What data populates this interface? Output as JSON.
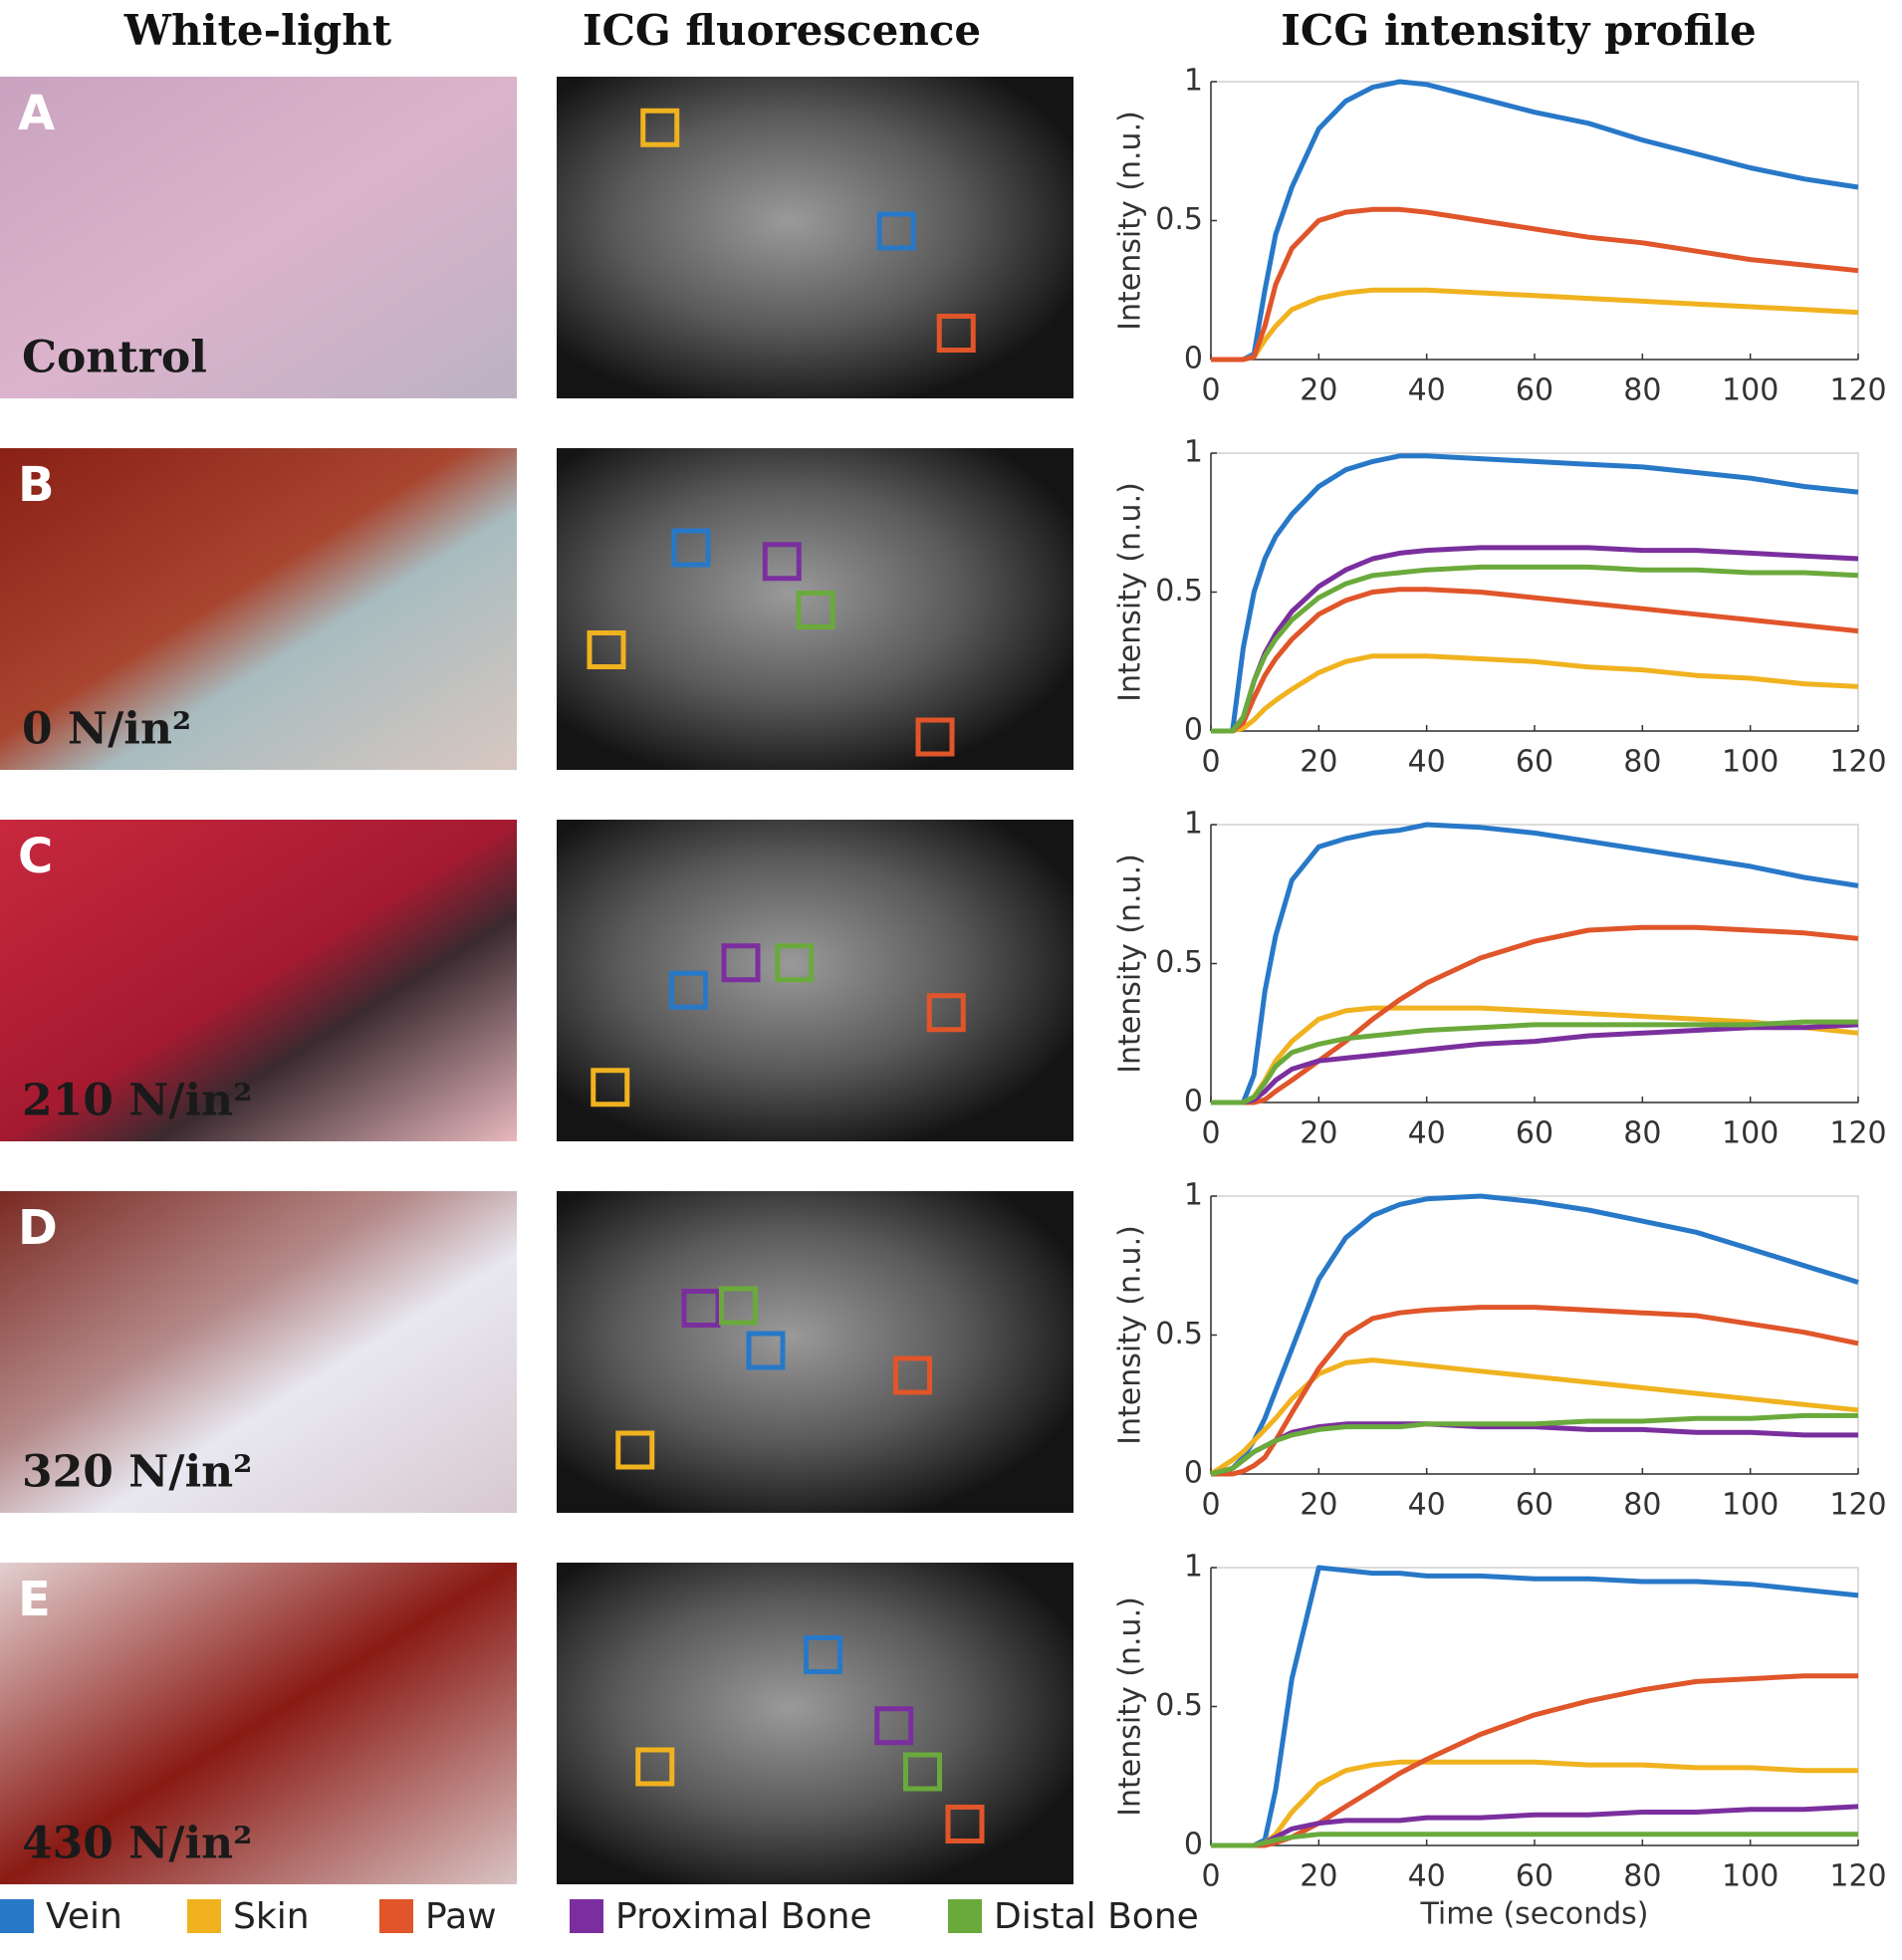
{
  "headers": [
    "White-light",
    "ICG fluorescence",
    "ICG intensity profile"
  ],
  "panels": [
    {
      "label": "A",
      "condition": "Control"
    },
    {
      "label": "B",
      "condition": "0 N/in²"
    },
    {
      "label": "C",
      "condition": "210 N/in²"
    },
    {
      "label": "D",
      "condition": "320 N/in²"
    },
    {
      "label": "E",
      "condition": "430 N/in²"
    }
  ],
  "chart_data": [
    {
      "type": "line",
      "ylabel": "Intensity (n.u.)",
      "x": [
        0,
        4,
        6,
        8,
        10,
        12,
        15,
        20,
        25,
        30,
        35,
        40,
        50,
        60,
        70,
        80,
        90,
        100,
        110,
        120
      ],
      "xlim": [
        0,
        120
      ],
      "ylim": [
        0,
        1
      ],
      "xticks": [
        0,
        20,
        40,
        60,
        80,
        100,
        120
      ],
      "yticks": [
        0,
        0.5,
        1
      ],
      "series": [
        {
          "name": "Vein",
          "color": "#2878c8",
          "values": [
            0,
            0,
            0,
            0.02,
            0.25,
            0.45,
            0.62,
            0.83,
            0.93,
            0.98,
            1.0,
            0.99,
            0.94,
            0.89,
            0.85,
            0.79,
            0.74,
            0.69,
            0.65,
            0.62
          ]
        },
        {
          "name": "Skin",
          "color": "#f0b21f",
          "values": [
            0,
            0,
            0,
            0.01,
            0.07,
            0.12,
            0.18,
            0.22,
            0.24,
            0.25,
            0.25,
            0.25,
            0.24,
            0.23,
            0.22,
            0.21,
            0.2,
            0.19,
            0.18,
            0.17
          ]
        },
        {
          "name": "Paw",
          "color": "#e0552a",
          "values": [
            0,
            0,
            0,
            0.01,
            0.12,
            0.27,
            0.4,
            0.5,
            0.53,
            0.54,
            0.54,
            0.53,
            0.5,
            0.47,
            0.44,
            0.42,
            0.39,
            0.36,
            0.34,
            0.32
          ]
        }
      ]
    },
    {
      "type": "line",
      "ylabel": "Intensity (n.u.)",
      "x": [
        0,
        4,
        6,
        8,
        10,
        12,
        15,
        20,
        25,
        30,
        35,
        40,
        50,
        60,
        70,
        80,
        90,
        100,
        110,
        120
      ],
      "xlim": [
        0,
        120
      ],
      "ylim": [
        0,
        1
      ],
      "xticks": [
        0,
        20,
        40,
        60,
        80,
        100,
        120
      ],
      "yticks": [
        0,
        0.5,
        1
      ],
      "series": [
        {
          "name": "Vein",
          "color": "#2878c8",
          "values": [
            0,
            0,
            0.3,
            0.5,
            0.62,
            0.7,
            0.78,
            0.88,
            0.94,
            0.97,
            0.99,
            0.99,
            0.98,
            0.97,
            0.96,
            0.95,
            0.93,
            0.91,
            0.88,
            0.86
          ]
        },
        {
          "name": "Skin",
          "color": "#f0b21f",
          "values": [
            0,
            0,
            0.01,
            0.04,
            0.08,
            0.11,
            0.15,
            0.21,
            0.25,
            0.27,
            0.27,
            0.27,
            0.26,
            0.25,
            0.23,
            0.22,
            0.2,
            0.19,
            0.17,
            0.16
          ]
        },
        {
          "name": "Paw",
          "color": "#e0552a",
          "values": [
            0,
            0,
            0.03,
            0.12,
            0.2,
            0.26,
            0.33,
            0.42,
            0.47,
            0.5,
            0.51,
            0.51,
            0.5,
            0.48,
            0.46,
            0.44,
            0.42,
            0.4,
            0.38,
            0.36
          ]
        },
        {
          "name": "Proximal Bone",
          "color": "#7b2f9e",
          "values": [
            0,
            0,
            0.05,
            0.18,
            0.28,
            0.35,
            0.43,
            0.52,
            0.58,
            0.62,
            0.64,
            0.65,
            0.66,
            0.66,
            0.66,
            0.65,
            0.65,
            0.64,
            0.63,
            0.62
          ]
        },
        {
          "name": "Distal Bone",
          "color": "#6aaa3c",
          "values": [
            0,
            0,
            0.05,
            0.18,
            0.27,
            0.33,
            0.4,
            0.48,
            0.53,
            0.56,
            0.57,
            0.58,
            0.59,
            0.59,
            0.59,
            0.58,
            0.58,
            0.57,
            0.57,
            0.56
          ]
        }
      ]
    },
    {
      "type": "line",
      "ylabel": "Intensity (n.u.)",
      "x": [
        0,
        4,
        6,
        8,
        10,
        12,
        15,
        20,
        25,
        30,
        35,
        40,
        50,
        60,
        70,
        80,
        90,
        100,
        110,
        120
      ],
      "xlim": [
        0,
        120
      ],
      "ylim": [
        0,
        1
      ],
      "xticks": [
        0,
        20,
        40,
        60,
        80,
        100,
        120
      ],
      "yticks": [
        0,
        0.5,
        1
      ],
      "series": [
        {
          "name": "Vein",
          "color": "#2878c8",
          "values": [
            0,
            0,
            0,
            0.1,
            0.4,
            0.6,
            0.8,
            0.92,
            0.95,
            0.97,
            0.98,
            1.0,
            0.99,
            0.97,
            0.94,
            0.91,
            0.88,
            0.85,
            0.81,
            0.78
          ]
        },
        {
          "name": "Skin",
          "color": "#f0b21f",
          "values": [
            0,
            0,
            0,
            0.02,
            0.08,
            0.15,
            0.22,
            0.3,
            0.33,
            0.34,
            0.34,
            0.34,
            0.34,
            0.33,
            0.32,
            0.31,
            0.3,
            0.29,
            0.27,
            0.25
          ]
        },
        {
          "name": "Paw",
          "color": "#e0552a",
          "values": [
            0,
            0,
            0,
            0,
            0.01,
            0.04,
            0.08,
            0.15,
            0.22,
            0.3,
            0.37,
            0.43,
            0.52,
            0.58,
            0.62,
            0.63,
            0.63,
            0.62,
            0.61,
            0.59
          ]
        },
        {
          "name": "Proximal Bone",
          "color": "#7b2f9e",
          "values": [
            0,
            0,
            0,
            0.01,
            0.04,
            0.08,
            0.12,
            0.15,
            0.16,
            0.17,
            0.18,
            0.19,
            0.21,
            0.22,
            0.24,
            0.25,
            0.26,
            0.27,
            0.27,
            0.28
          ]
        },
        {
          "name": "Distal Bone",
          "color": "#6aaa3c",
          "values": [
            0,
            0,
            0,
            0.02,
            0.07,
            0.13,
            0.18,
            0.21,
            0.23,
            0.24,
            0.25,
            0.26,
            0.27,
            0.28,
            0.28,
            0.28,
            0.28,
            0.28,
            0.29,
            0.29
          ]
        }
      ]
    },
    {
      "type": "line",
      "ylabel": "Intensity (n.u.)",
      "x": [
        0,
        4,
        6,
        8,
        10,
        12,
        15,
        20,
        25,
        30,
        35,
        40,
        50,
        60,
        70,
        80,
        90,
        100,
        110,
        120
      ],
      "xlim": [
        0,
        120
      ],
      "ylim": [
        0,
        1
      ],
      "xticks": [
        0,
        20,
        40,
        60,
        80,
        100,
        120
      ],
      "yticks": [
        0,
        0.5,
        1
      ],
      "series": [
        {
          "name": "Vein",
          "color": "#2878c8",
          "values": [
            0,
            0.02,
            0.06,
            0.12,
            0.2,
            0.3,
            0.45,
            0.7,
            0.85,
            0.93,
            0.97,
            0.99,
            1.0,
            0.98,
            0.95,
            0.91,
            0.87,
            0.81,
            0.75,
            0.69
          ]
        },
        {
          "name": "Skin",
          "color": "#f0b21f",
          "values": [
            0,
            0.05,
            0.08,
            0.12,
            0.16,
            0.2,
            0.27,
            0.36,
            0.4,
            0.41,
            0.4,
            0.39,
            0.37,
            0.35,
            0.33,
            0.31,
            0.29,
            0.27,
            0.25,
            0.23
          ]
        },
        {
          "name": "Paw",
          "color": "#e0552a",
          "values": [
            0,
            0,
            0.01,
            0.03,
            0.06,
            0.12,
            0.22,
            0.38,
            0.5,
            0.56,
            0.58,
            0.59,
            0.6,
            0.6,
            0.59,
            0.58,
            0.57,
            0.54,
            0.51,
            0.47
          ]
        },
        {
          "name": "Proximal Bone",
          "color": "#7b2f9e",
          "values": [
            0,
            0.02,
            0.05,
            0.08,
            0.1,
            0.12,
            0.15,
            0.17,
            0.18,
            0.18,
            0.18,
            0.18,
            0.17,
            0.17,
            0.16,
            0.16,
            0.15,
            0.15,
            0.14,
            0.14
          ]
        },
        {
          "name": "Distal Bone",
          "color": "#6aaa3c",
          "values": [
            0,
            0.02,
            0.05,
            0.08,
            0.1,
            0.12,
            0.14,
            0.16,
            0.17,
            0.17,
            0.17,
            0.18,
            0.18,
            0.18,
            0.19,
            0.19,
            0.2,
            0.2,
            0.21,
            0.21
          ]
        }
      ]
    },
    {
      "type": "line",
      "ylabel": "Intensity (n.u.)",
      "xlabel": "Time (seconds)",
      "x": [
        0,
        4,
        6,
        8,
        10,
        12,
        15,
        20,
        25,
        30,
        35,
        40,
        50,
        60,
        70,
        80,
        90,
        100,
        110,
        120
      ],
      "xlim": [
        0,
        120
      ],
      "ylim": [
        0,
        1
      ],
      "xticks": [
        0,
        20,
        40,
        60,
        80,
        100,
        120
      ],
      "yticks": [
        0,
        0.5,
        1
      ],
      "series": [
        {
          "name": "Vein",
          "color": "#2878c8",
          "values": [
            0,
            0,
            0,
            0,
            0.02,
            0.2,
            0.6,
            1.0,
            0.99,
            0.98,
            0.98,
            0.97,
            0.97,
            0.96,
            0.96,
            0.95,
            0.95,
            0.94,
            0.92,
            0.9
          ]
        },
        {
          "name": "Skin",
          "color": "#f0b21f",
          "values": [
            0,
            0,
            0,
            0,
            0.01,
            0.04,
            0.12,
            0.22,
            0.27,
            0.29,
            0.3,
            0.3,
            0.3,
            0.3,
            0.29,
            0.29,
            0.28,
            0.28,
            0.27,
            0.27
          ]
        },
        {
          "name": "Paw",
          "color": "#e0552a",
          "values": [
            0,
            0,
            0,
            0,
            0,
            0.01,
            0.03,
            0.08,
            0.14,
            0.2,
            0.26,
            0.31,
            0.4,
            0.47,
            0.52,
            0.56,
            0.59,
            0.6,
            0.61,
            0.61
          ]
        },
        {
          "name": "Proximal Bone",
          "color": "#7b2f9e",
          "values": [
            0,
            0,
            0,
            0,
            0.01,
            0.03,
            0.06,
            0.08,
            0.09,
            0.09,
            0.09,
            0.1,
            0.1,
            0.11,
            0.11,
            0.12,
            0.12,
            0.13,
            0.13,
            0.14
          ]
        },
        {
          "name": "Distal Bone",
          "color": "#6aaa3c",
          "values": [
            0,
            0,
            0,
            0,
            0.01,
            0.02,
            0.03,
            0.04,
            0.04,
            0.04,
            0.04,
            0.04,
            0.04,
            0.04,
            0.04,
            0.04,
            0.04,
            0.04,
            0.04,
            0.04
          ]
        }
      ]
    }
  ]
}
